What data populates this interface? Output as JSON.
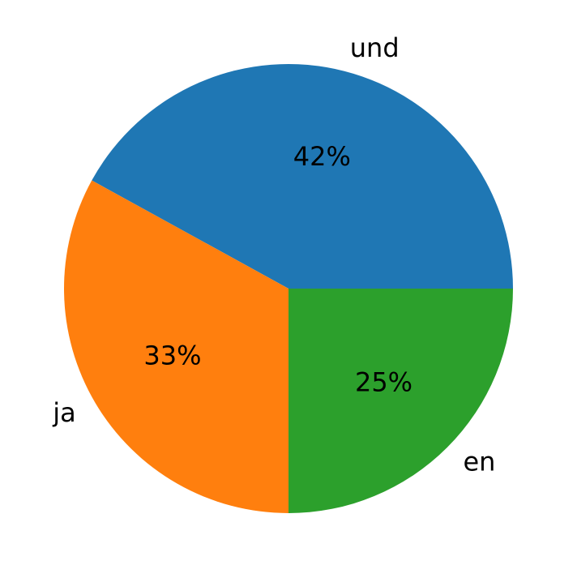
{
  "chart_data": {
    "type": "pie",
    "categories": [
      "und",
      "ja",
      "en"
    ],
    "values": [
      42,
      33,
      25
    ],
    "value_labels": [
      "42%",
      "33%",
      "25%"
    ],
    "colors": [
      "#1f77b4",
      "#ff7f0e",
      "#2ca02c"
    ]
  }
}
